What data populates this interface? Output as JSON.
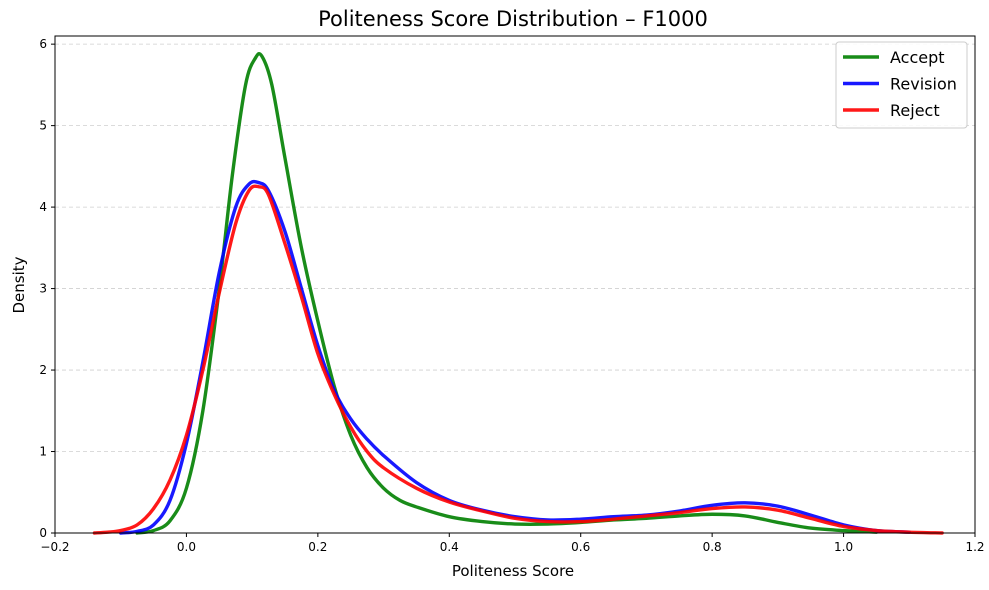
{
  "chart_data": {
    "type": "line",
    "title": "Politeness Score Distribution – F1000",
    "xlabel": "Politeness Score",
    "ylabel": "Density",
    "xlim": [
      -0.2,
      1.2
    ],
    "ylim": [
      0,
      6.1
    ],
    "xticks": [
      -0.2,
      0.0,
      0.2,
      0.4,
      0.6,
      0.8,
      1.0,
      1.2
    ],
    "xtick_labels": [
      "−0.2",
      "0.0",
      "0.2",
      "0.4",
      "0.6",
      "0.8",
      "1.0",
      "1.2"
    ],
    "yticks": [
      0,
      1,
      2,
      3,
      4,
      5,
      6
    ],
    "ytick_labels": [
      "0",
      "1",
      "2",
      "3",
      "4",
      "5",
      "6"
    ],
    "grid": "y-dashed",
    "legend": "top-right",
    "series": [
      {
        "name": "Accept",
        "color": "#008000",
        "x": [
          -0.075,
          -0.05,
          -0.025,
          0.0,
          0.025,
          0.05,
          0.07,
          0.09,
          0.105,
          0.115,
          0.13,
          0.15,
          0.175,
          0.2,
          0.225,
          0.25,
          0.275,
          0.3,
          0.325,
          0.35,
          0.4,
          0.45,
          0.5,
          0.55,
          0.6,
          0.65,
          0.7,
          0.75,
          0.8,
          0.85,
          0.9,
          0.95,
          1.0,
          1.05
        ],
        "y": [
          0.0,
          0.03,
          0.15,
          0.55,
          1.5,
          3.0,
          4.4,
          5.5,
          5.83,
          5.85,
          5.5,
          4.6,
          3.5,
          2.6,
          1.8,
          1.2,
          0.8,
          0.55,
          0.4,
          0.32,
          0.2,
          0.14,
          0.11,
          0.11,
          0.13,
          0.16,
          0.18,
          0.21,
          0.23,
          0.21,
          0.13,
          0.06,
          0.03,
          0.01
        ]
      },
      {
        "name": "Revision",
        "color": "#0000ff",
        "x": [
          -0.1,
          -0.075,
          -0.05,
          -0.025,
          0.0,
          0.025,
          0.05,
          0.075,
          0.095,
          0.11,
          0.125,
          0.15,
          0.175,
          0.2,
          0.225,
          0.25,
          0.275,
          0.3,
          0.35,
          0.4,
          0.45,
          0.5,
          0.55,
          0.6,
          0.65,
          0.7,
          0.75,
          0.8,
          0.85,
          0.9,
          0.95,
          1.0,
          1.05,
          1.1
        ],
        "y": [
          0.0,
          0.02,
          0.1,
          0.4,
          1.1,
          2.1,
          3.2,
          4.0,
          4.28,
          4.3,
          4.2,
          3.7,
          3.0,
          2.3,
          1.75,
          1.4,
          1.15,
          0.95,
          0.62,
          0.4,
          0.28,
          0.2,
          0.16,
          0.17,
          0.2,
          0.22,
          0.27,
          0.34,
          0.37,
          0.33,
          0.22,
          0.1,
          0.03,
          0.01
        ]
      },
      {
        "name": "Reject",
        "color": "#ff0000",
        "x": [
          -0.14,
          -0.12,
          -0.1,
          -0.075,
          -0.05,
          -0.025,
          0.0,
          0.025,
          0.05,
          0.075,
          0.095,
          0.11,
          0.125,
          0.15,
          0.175,
          0.2,
          0.225,
          0.25,
          0.275,
          0.3,
          0.35,
          0.4,
          0.45,
          0.5,
          0.55,
          0.6,
          0.65,
          0.7,
          0.75,
          0.8,
          0.85,
          0.9,
          0.95,
          1.0,
          1.05,
          1.1,
          1.15
        ],
        "y": [
          0.0,
          0.01,
          0.03,
          0.1,
          0.3,
          0.65,
          1.2,
          2.0,
          2.95,
          3.8,
          4.2,
          4.25,
          4.15,
          3.55,
          2.9,
          2.2,
          1.7,
          1.3,
          1.0,
          0.8,
          0.55,
          0.38,
          0.27,
          0.18,
          0.14,
          0.14,
          0.17,
          0.21,
          0.25,
          0.3,
          0.32,
          0.28,
          0.18,
          0.08,
          0.03,
          0.01,
          0.0
        ]
      }
    ]
  }
}
